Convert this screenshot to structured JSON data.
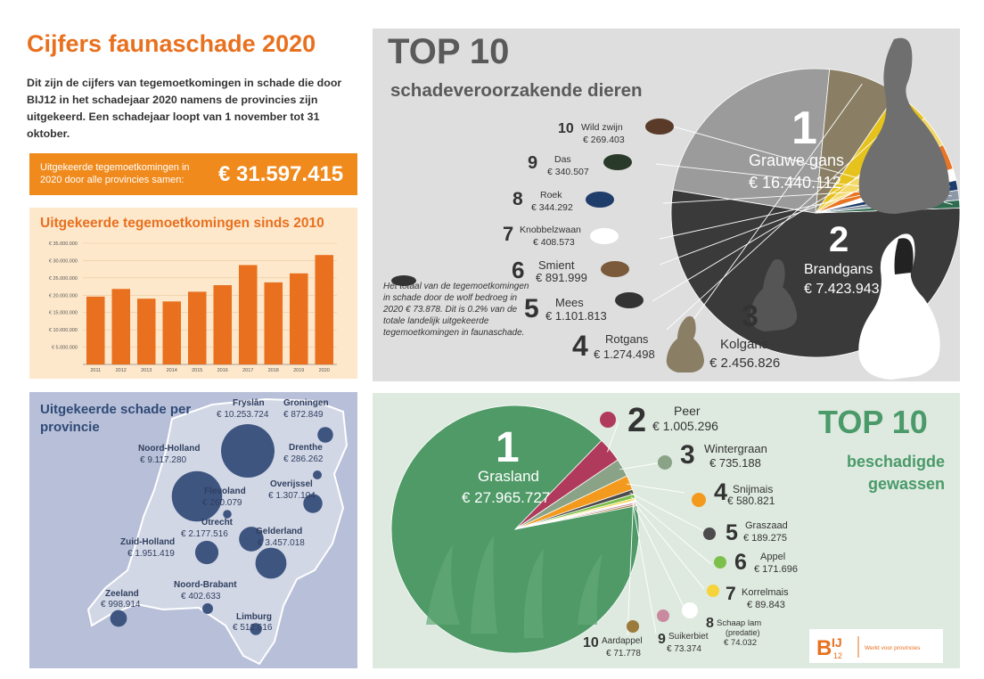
{
  "title": "Cijfers faunaschade 2020",
  "intro": "Dit zijn de cijfers van tegemoetkomingen in schade die door BIJ12 in het schadejaar 2020 namens de provincies zijn uitgekeerd. Een schadejaar loopt van 1 november tot 31 oktober.",
  "total": {
    "label": "Uitgekeerde tegemoetkomingen in 2020 door alle provincies samen:",
    "value": "€ 31.597.415"
  },
  "chart_data": [
    {
      "type": "bar",
      "title": "Uitgekeerde tegemoetkomingen sinds 2010",
      "categories": [
        "2011",
        "2012",
        "2013",
        "2014",
        "2015",
        "2016",
        "2017",
        "2018",
        "2019",
        "2020"
      ],
      "values": [
        19600000,
        21800000,
        19000000,
        18200000,
        21000000,
        22900000,
        28700000,
        23700000,
        26300000,
        31600000
      ],
      "yticks": [
        "€ 35.000.000",
        "€ 30.000.000",
        "€ 25.000.000",
        "€ 20.000.000",
        "€ 15.000.000",
        "€ 10.000.000",
        "€ 5.000.000"
      ],
      "ylim": [
        0,
        35000000
      ],
      "color": "#e8701e"
    },
    {
      "type": "pie",
      "title": "TOP 10",
      "subtitle": "schadeveroorzakende dieren",
      "slices": [
        {
          "rank": "1",
          "name": "Grauwe gans",
          "value": "€ 16.440.112",
          "amount": 16440112,
          "color": "#3a3a3a"
        },
        {
          "rank": "2",
          "name": "Brandgans",
          "value": "€ 7.423.943",
          "amount": 7423943,
          "color": "#9b9b9b"
        },
        {
          "rank": "3",
          "name": "Kolgans",
          "value": "€ 2.456.826",
          "amount": 2456826,
          "color": "#8a7f65"
        },
        {
          "rank": "4",
          "name": "Rotgans",
          "value": "€ 1.274.498",
          "amount": 1274498,
          "color": "#e6c21c"
        },
        {
          "rank": "5",
          "name": "Mees",
          "value": "€ 1.101.813",
          "amount": 1101813,
          "color": "#f3d86a"
        },
        {
          "rank": "6",
          "name": "Smient",
          "value": "€ 891.999",
          "amount": 891999,
          "color": "#e87524"
        },
        {
          "rank": "7",
          "name": "Knobbelzwaan",
          "value": "€ 408.573",
          "amount": 408573,
          "color": "#ffffff"
        },
        {
          "rank": "8",
          "name": "Roek",
          "value": "€ 344.292",
          "amount": 344292,
          "color": "#1f3d6b"
        },
        {
          "rank": "9",
          "name": "Das",
          "value": "€ 340.507",
          "amount": 340507,
          "color": "#8d98a6"
        },
        {
          "rank": "10",
          "name": "Wild zwijn",
          "value": "€ 269.403",
          "amount": 269403,
          "color": "#2e6b4f"
        }
      ],
      "note": "Het totaal van de tegemoetkomingen in schade door de wolf bedroeg in 2020 € 73.878. Dit is 0.2% van de totale landelijk uitgekeerde tegemoetkomingen in faunaschade."
    },
    {
      "type": "pie",
      "title": "TOP 10",
      "subtitle": "beschadigde gewassen",
      "slices": [
        {
          "rank": "1",
          "name": "Grasland",
          "value": "€ 27.965.727",
          "amount": 27965727,
          "color": "#4f9a67"
        },
        {
          "rank": "2",
          "name": "Peer",
          "value": "€ 1.005.296",
          "amount": 1005296,
          "color": "#b03a5b"
        },
        {
          "rank": "3",
          "name": "Wintergraan",
          "value": "€ 735.188",
          "amount": 735188,
          "color": "#8aa386"
        },
        {
          "rank": "4",
          "name": "Snijmais",
          "value": "€ 580.821",
          "amount": 580821,
          "color": "#f39a1e"
        },
        {
          "rank": "5",
          "name": "Graszaad",
          "value": "€ 189.275",
          "amount": 189275,
          "color": "#4c4c4c"
        },
        {
          "rank": "6",
          "name": "Appel",
          "value": "€ 171.696",
          "amount": 171696,
          "color": "#7cc04b"
        },
        {
          "rank": "7",
          "name": "Korrelmais",
          "value": "€ 89.843",
          "amount": 89843,
          "color": "#f6d33a"
        },
        {
          "rank": "8",
          "name": "Schaap lam",
          "sub": "(predatie)",
          "value": "€ 74.032",
          "amount": 74032,
          "color": "#ffffff"
        },
        {
          "rank": "9",
          "name": "Suikerbiet",
          "value": "€ 73.374",
          "amount": 73374,
          "color": "#c98aa0"
        },
        {
          "rank": "10",
          "name": "Aardappel",
          "value": "€ 71.778",
          "amount": 71778,
          "color": "#9c7a3c"
        }
      ]
    }
  ],
  "map": {
    "title": "Uitgekeerde schade per provincie",
    "provinces": [
      {
        "name": "Fryslân",
        "value": "€ 10.253.724",
        "amount": 10253724
      },
      {
        "name": "Groningen",
        "value": "€ 872.849",
        "amount": 872849
      },
      {
        "name": "Noord-Holland",
        "value": "€ 9.117.280",
        "amount": 9117280
      },
      {
        "name": "Drenthe",
        "value": "€ 286.262",
        "amount": 286262
      },
      {
        "name": "Flevoland",
        "value": "€ 260.079",
        "amount": 260079
      },
      {
        "name": "Overijssel",
        "value": "€ 1.307.104",
        "amount": 1307104
      },
      {
        "name": "Utrecht",
        "value": "€ 2.177.516",
        "amount": 2177516
      },
      {
        "name": "Gelderland",
        "value": "€ 3.457.018",
        "amount": 3457018
      },
      {
        "name": "Zuid-Holland",
        "value": "€ 1.951.419",
        "amount": 1951419
      },
      {
        "name": "Noord-Brabant",
        "value": "€ 402.633",
        "amount": 402633
      },
      {
        "name": "Zeeland",
        "value": "€ 998.914",
        "amount": 998914
      },
      {
        "name": "Limburg",
        "value": "€ 512.616",
        "amount": 512616
      }
    ]
  },
  "logo": {
    "text": "BIJ12",
    "tagline": "Werkt voor provincies"
  },
  "colors": {
    "orange": "#e8701e",
    "navy": "#3e5580",
    "green": "#4a9a6a"
  }
}
